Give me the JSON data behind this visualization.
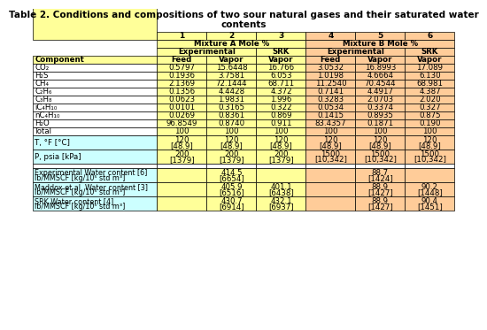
{
  "title_line1": "Table 2. Conditions and compositions of two sour natural gases and their saturated water",
  "title_line2": "contents",
  "col_nums": [
    "1",
    "2",
    "3",
    "4",
    "5",
    "6"
  ],
  "mix_a_label": "Mixture A Mole %",
  "mix_b_label": "Mixture B Mole %",
  "exp_label": "Experimental",
  "srk_label": "SRK",
  "header4": [
    "Component",
    "Feed",
    "Vapor",
    "Vapor",
    "Feed",
    "Vapor",
    "Vapor"
  ],
  "components": [
    "CO₂",
    "H₂S",
    "CH₄",
    "C₂H₆",
    "C₃H₈",
    "iC₄H₁₀",
    "nC₄H₁₀",
    "H₂O",
    "Total"
  ],
  "data_str_vals": [
    [
      "0.5797",
      "15.6448",
      "16.766",
      "3.0532",
      "16.8993",
      "17.089"
    ],
    [
      "0.1936",
      "3.7581",
      "6.053",
      "1.0198",
      "4.6664",
      "6.130"
    ],
    [
      "2.1369",
      "72.1444",
      "68.711",
      "11.2540",
      "70.4544",
      "68.981"
    ],
    [
      "0.1356",
      "4.4428",
      "4.372",
      "0.7141",
      "4.4917",
      "4.387"
    ],
    [
      "0.0623",
      "1.9831",
      "1.996",
      "0.3283",
      "2.0703",
      "2.020"
    ],
    [
      "0.0101",
      "0.3165",
      "0.322",
      "0.0534",
      "0.3374",
      "0.327"
    ],
    [
      "0.0269",
      "0.8361",
      "0.869",
      "0.1415",
      "0.8935",
      "0.875"
    ],
    [
      "96.8549",
      "0.8740",
      "0.911",
      "83.4357",
      "0.1871",
      "0.190"
    ],
    [
      "100",
      "100",
      "100",
      "100",
      "100",
      "100"
    ]
  ],
  "T_label": "T, °F [°C]",
  "T_top": [
    "120",
    "120",
    "120",
    "120",
    "120",
    "120"
  ],
  "T_bot": [
    "[48.9]",
    "[48.9]",
    "[48.9]",
    "[48.9]",
    "[48.9]",
    "[48.9]"
  ],
  "P_label": "P, psia [kPa]",
  "P_topA": [
    "200",
    "200",
    "200"
  ],
  "P_botA": [
    "[1379]",
    "[1379]",
    "[1379]"
  ],
  "P_topB": [
    "1500",
    "1500",
    "1500"
  ],
  "P_botB": [
    "[10,342]",
    "[10,342]",
    "[10,342]"
  ],
  "bottom_labels": [
    "Experimental Water content [6]\nlb/MMSCF [kg/10⁵ std m³]",
    "Maddox et al. Water content [3]\nlb/MMSCF [kg/10⁵ std m³]",
    "SRK Water content [4]\nlb/MMSCF [kg/10⁵ std m³]"
  ],
  "bottom_col2": [
    "414.5\n[6654]",
    "405.9\n[6516]",
    "430.7\n[6914]"
  ],
  "bottom_col3": [
    "",
    "401.1\n[6438]",
    "432.1\n[6937]"
  ],
  "bottom_col5": [
    "88.7\n[1424]",
    "88.9\n[1427]",
    "88.9\n[1427]"
  ],
  "bottom_col6": [
    "",
    "90.2\n[1448]",
    "90.4\n[1451]"
  ],
  "color_yellow": "#FFFF99",
  "color_orange": "#FFCC99",
  "color_cyan": "#CCFFFF",
  "color_white": "#FFFFFF"
}
